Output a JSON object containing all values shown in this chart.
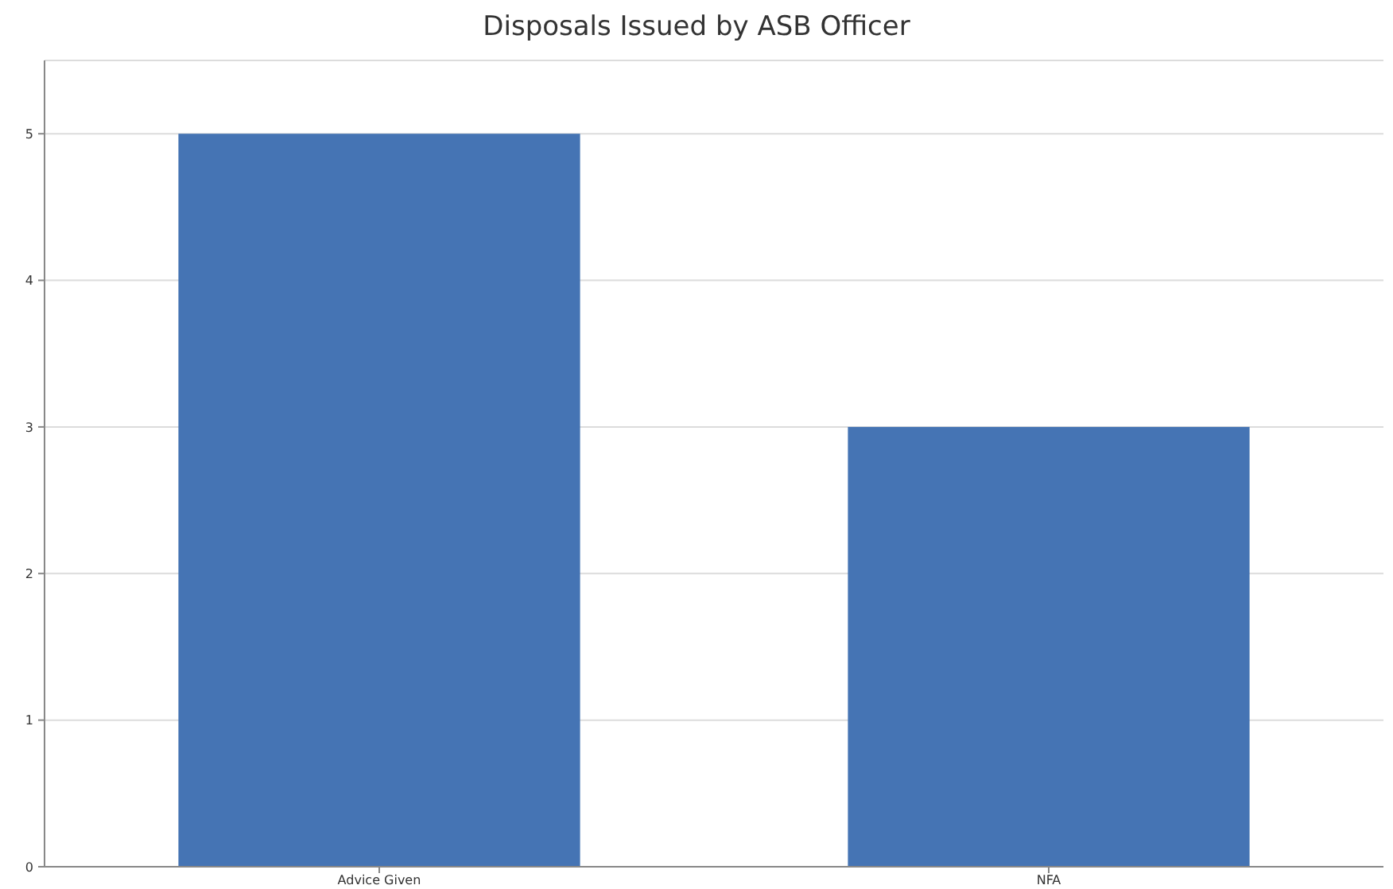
{
  "chart_data": {
    "type": "bar",
    "title": "Disposals Issued by ASB Officer",
    "categories": [
      "Advice Given",
      "NFA"
    ],
    "values": [
      5,
      3
    ],
    "color": "#4574b4",
    "ylim": [
      0,
      5.5
    ],
    "yticks": [
      0,
      1,
      2,
      3,
      4,
      5
    ],
    "grid": "y"
  }
}
